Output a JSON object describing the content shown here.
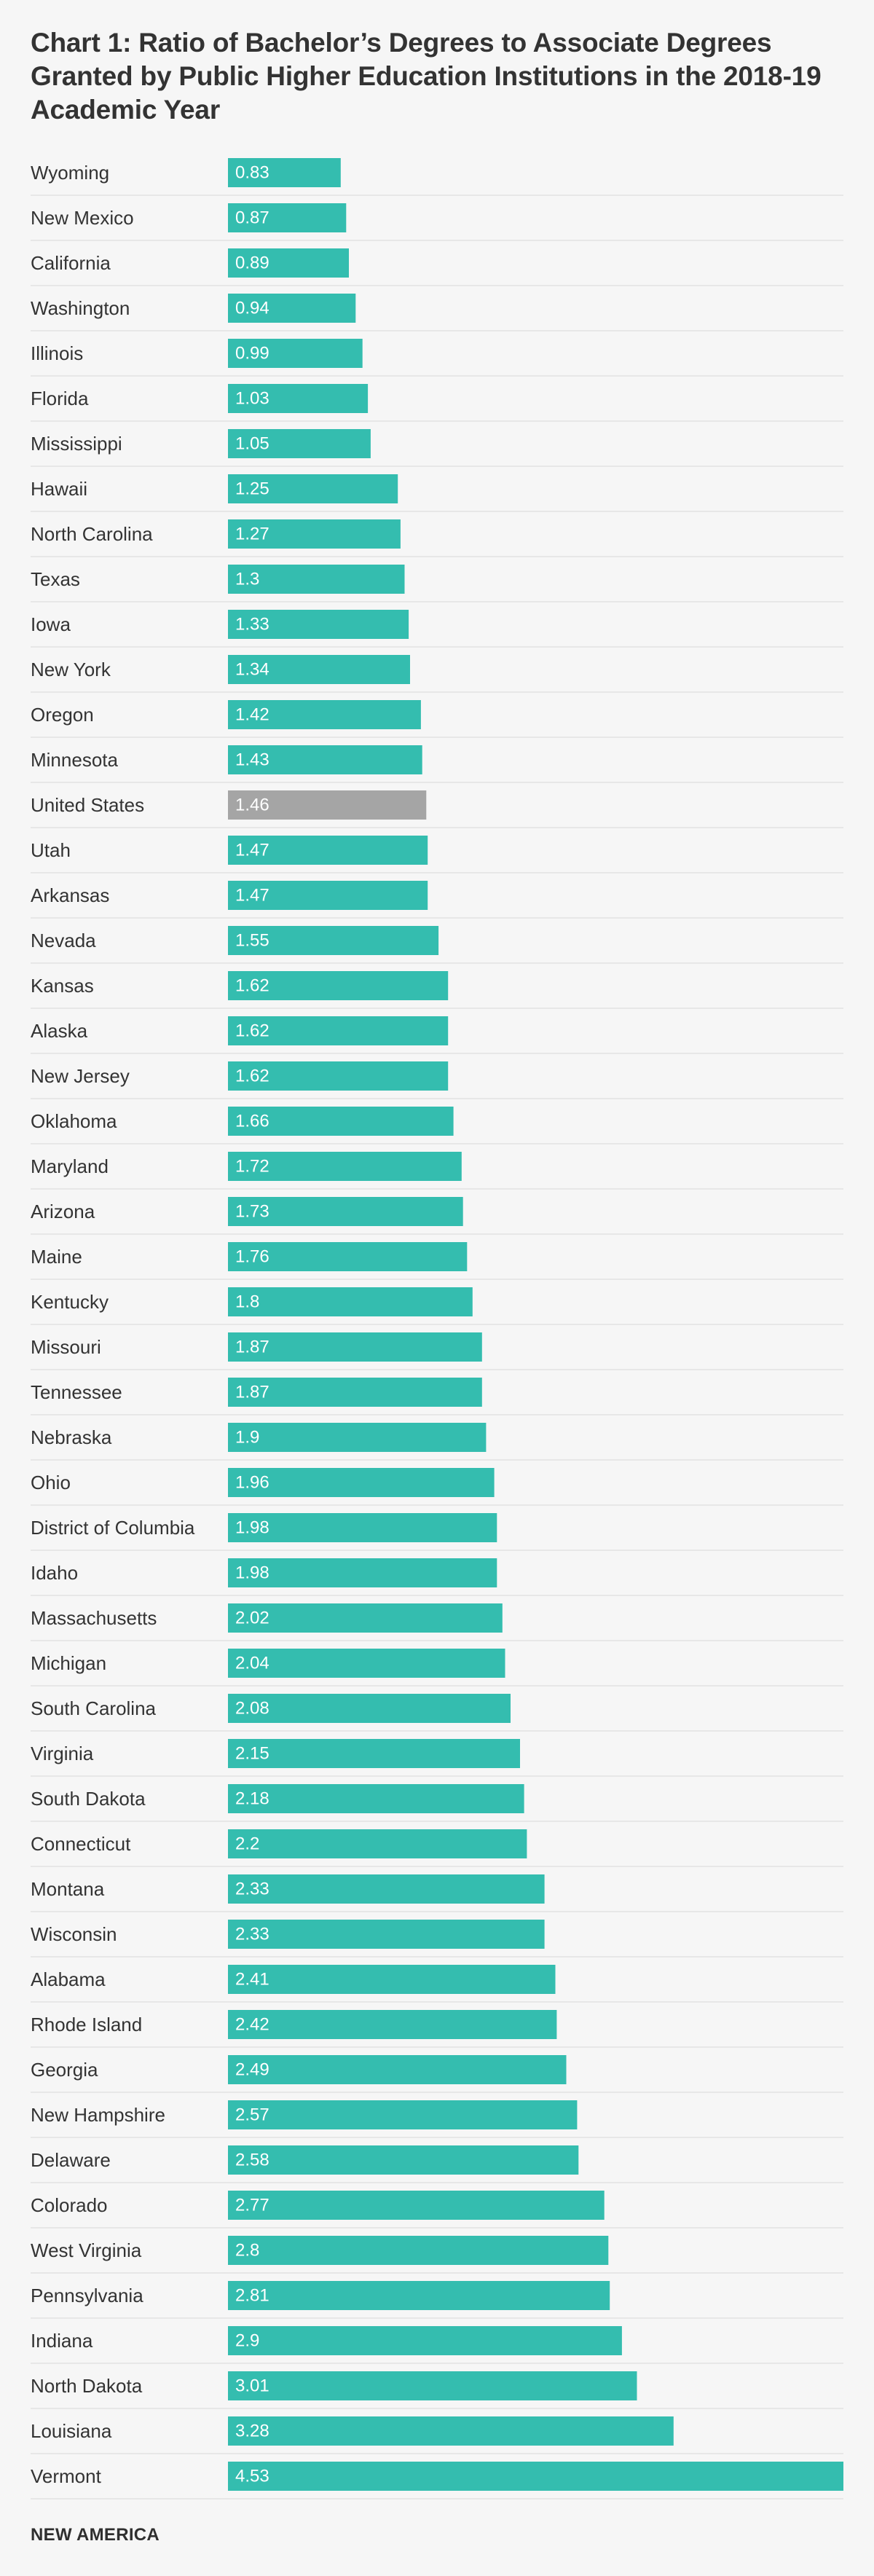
{
  "chart_data": {
    "type": "bar",
    "orientation": "horizontal",
    "title": "Chart 1: Ratio of Bachelor’s Degrees to Associate Degrees Granted by Public Higher Education Institutions in the 2018-19 Academic Year",
    "xlabel": "",
    "ylabel": "",
    "xlim": [
      0,
      4.53
    ],
    "grid": false,
    "highlight_category": "United States",
    "colors": {
      "bar": "#34bdaf",
      "highlight": "#a5a5a5",
      "separator": "#e2e2e2",
      "background": "#f6f6f6"
    },
    "categories": [
      "Wyoming",
      "New Mexico",
      "California",
      "Washington",
      "Illinois",
      "Florida",
      "Mississippi",
      "Hawaii",
      "North Carolina",
      "Texas",
      "Iowa",
      "New York",
      "Oregon",
      "Minnesota",
      "United States",
      "Utah",
      "Arkansas",
      "Nevada",
      "Kansas",
      "Alaska",
      "New Jersey",
      "Oklahoma",
      "Maryland",
      "Arizona",
      "Maine",
      "Kentucky",
      "Missouri",
      "Tennessee",
      "Nebraska",
      "Ohio",
      "District of Columbia",
      "Idaho",
      "Massachusetts",
      "Michigan",
      "South Carolina",
      "Virginia",
      "South Dakota",
      "Connecticut",
      "Montana",
      "Wisconsin",
      "Alabama",
      "Rhode Island",
      "Georgia",
      "New Hampshire",
      "Delaware",
      "Colorado",
      "West Virginia",
      "Pennsylvania",
      "Indiana",
      "North Dakota",
      "Louisiana",
      "Vermont"
    ],
    "values": [
      0.83,
      0.87,
      0.89,
      0.94,
      0.99,
      1.03,
      1.05,
      1.25,
      1.27,
      1.3,
      1.33,
      1.34,
      1.42,
      1.43,
      1.46,
      1.47,
      1.47,
      1.55,
      1.62,
      1.62,
      1.62,
      1.66,
      1.72,
      1.73,
      1.76,
      1.8,
      1.87,
      1.87,
      1.9,
      1.96,
      1.98,
      1.98,
      2.02,
      2.04,
      2.08,
      2.15,
      2.18,
      2.2,
      2.33,
      2.33,
      2.41,
      2.42,
      2.49,
      2.57,
      2.58,
      2.77,
      2.8,
      2.81,
      2.9,
      3.01,
      3.28,
      4.53
    ],
    "value_labels": [
      "0.83",
      "0.87",
      "0.89",
      "0.94",
      "0.99",
      "1.03",
      "1.05",
      "1.25",
      "1.27",
      "1.3",
      "1.33",
      "1.34",
      "1.42",
      "1.43",
      "1.46",
      "1.47",
      "1.47",
      "1.55",
      "1.62",
      "1.62",
      "1.62",
      "1.66",
      "1.72",
      "1.73",
      "1.76",
      "1.8",
      "1.87",
      "1.87",
      "1.9",
      "1.96",
      "1.98",
      "1.98",
      "2.02",
      "2.04",
      "2.08",
      "2.15",
      "2.18",
      "2.2",
      "2.33",
      "2.33",
      "2.41",
      "2.42",
      "2.49",
      "2.57",
      "2.58",
      "2.77",
      "2.8",
      "2.81",
      "2.9",
      "3.01",
      "3.28",
      "4.53"
    ]
  },
  "footer": {
    "brand": "NEW AMERICA"
  }
}
